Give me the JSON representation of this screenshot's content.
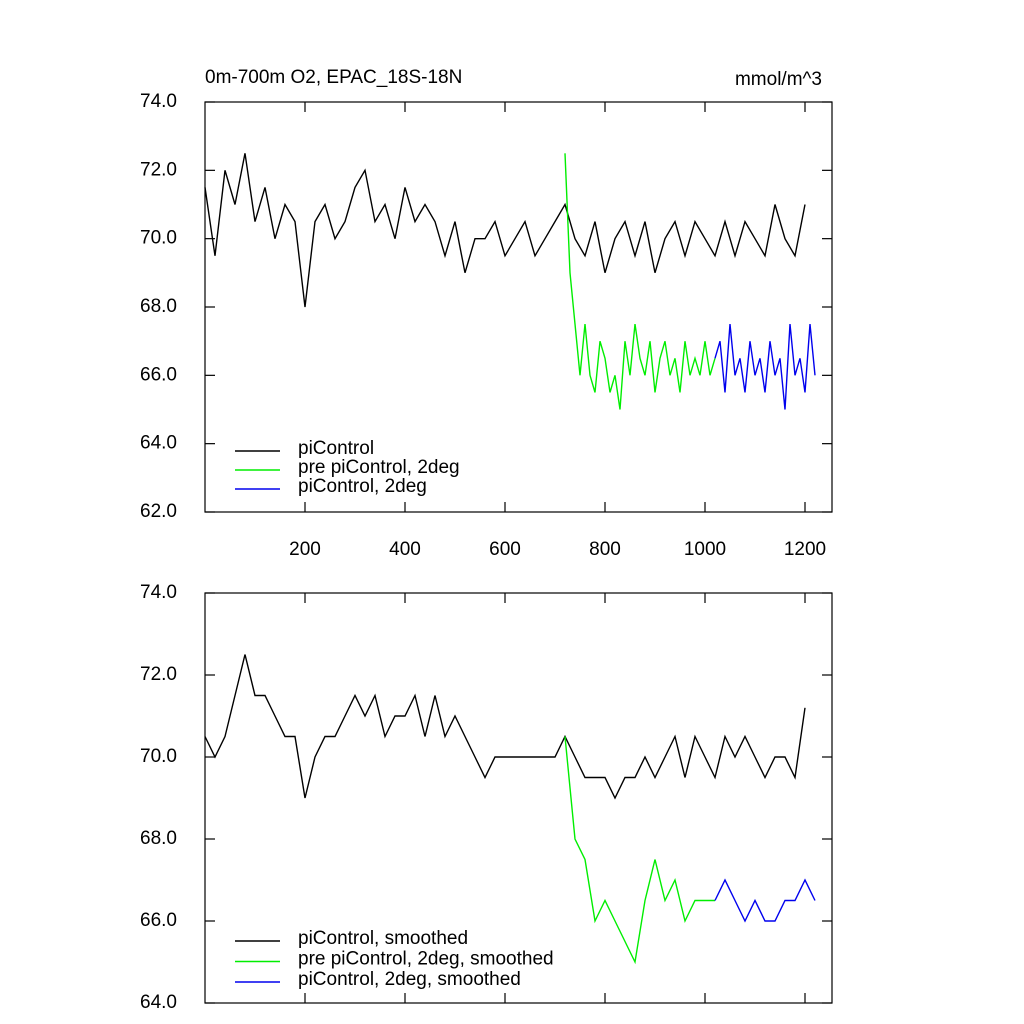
{
  "chart_data": [
    {
      "type": "line",
      "title": "0m-700m O2, EPAC_18S-18N",
      "units": "mmol/m^3",
      "xlim": [
        0,
        1254
      ],
      "xticks": [
        200,
        400,
        600,
        800,
        1000,
        1200
      ],
      "xtick_labels": true,
      "ylim": [
        62,
        74
      ],
      "yticks": [
        {
          "value": 62,
          "label": "62.0"
        },
        {
          "value": 64,
          "label": "64.0"
        },
        {
          "value": 66,
          "label": "66.0"
        },
        {
          "value": 68,
          "label": "68.0"
        },
        {
          "value": 70,
          "label": "70.0"
        },
        {
          "value": 72,
          "label": "72.0"
        },
        {
          "value": 74,
          "label": "74.0"
        }
      ],
      "legend": "lower left",
      "series": [
        {
          "name": "piControl",
          "color": "#000000",
          "x": [
            0,
            20,
            40,
            60,
            80,
            100,
            120,
            140,
            160,
            180,
            200,
            220,
            240,
            260,
            280,
            300,
            320,
            340,
            360,
            380,
            400,
            420,
            440,
            460,
            480,
            500,
            520,
            540,
            560,
            580,
            600,
            620,
            640,
            660,
            680,
            700,
            720,
            740,
            760,
            780,
            800,
            820,
            840,
            860,
            880,
            900,
            920,
            940,
            960,
            980,
            1000,
            1020,
            1040,
            1060,
            1080,
            1100,
            1120,
            1140,
            1160,
            1180,
            1200
          ],
          "values": [
            71.5,
            69.5,
            72,
            71,
            72.5,
            70.5,
            71.5,
            70,
            71,
            70.5,
            68,
            70.5,
            71,
            70,
            70.5,
            71.5,
            72,
            70.5,
            71,
            70,
            71.5,
            70.5,
            71,
            70.5,
            69.5,
            70.5,
            69,
            70,
            70,
            70.5,
            69.5,
            70,
            70.5,
            69.5,
            70,
            70.5,
            71,
            70,
            69.5,
            70.5,
            69,
            70,
            70.5,
            69.5,
            70.5,
            69,
            70,
            70.5,
            69.5,
            70.5,
            70,
            69.5,
            70.5,
            69.5,
            70.5,
            70,
            69.5,
            71,
            70,
            69.5,
            71
          ]
        },
        {
          "name": "pre piControl, 2deg",
          "color": "#00ee00",
          "x": [
            720,
            730,
            740,
            750,
            760,
            770,
            780,
            790,
            800,
            810,
            820,
            830,
            840,
            850,
            860,
            870,
            880,
            890,
            900,
            910,
            920,
            930,
            940,
            950,
            960,
            970,
            980,
            990,
            1000,
            1010,
            1020
          ],
          "values": [
            72.5,
            69,
            67.5,
            66,
            67.5,
            66,
            65.5,
            67,
            66.5,
            65.5,
            66,
            65,
            67,
            66,
            67.5,
            66.5,
            66,
            67,
            65.5,
            66.5,
            67,
            66,
            66.5,
            65.5,
            67,
            66,
            66.5,
            66,
            67,
            66,
            66.5
          ]
        },
        {
          "name": "piControl, 2deg",
          "color": "#0000ee",
          "x": [
            1020,
            1030,
            1040,
            1050,
            1060,
            1070,
            1080,
            1090,
            1100,
            1110,
            1120,
            1130,
            1140,
            1150,
            1160,
            1170,
            1180,
            1190,
            1200,
            1210,
            1220
          ],
          "values": [
            66.5,
            67,
            65.5,
            67.5,
            66,
            66.5,
            65.5,
            67,
            66,
            66.5,
            65.5,
            67,
            66,
            66.5,
            65,
            67.5,
            66,
            66.5,
            65.5,
            67.5,
            66
          ]
        }
      ]
    },
    {
      "type": "line",
      "xlim": [
        0,
        1254
      ],
      "xticks": [
        200,
        400,
        600,
        800,
        1000,
        1200
      ],
      "xtick_labels": false,
      "ylim": [
        64,
        74
      ],
      "yticks": [
        {
          "value": 64,
          "label": "64.0"
        },
        {
          "value": 66,
          "label": "66.0"
        },
        {
          "value": 68,
          "label": "68.0"
        },
        {
          "value": 70,
          "label": "70.0"
        },
        {
          "value": 72,
          "label": "72.0"
        },
        {
          "value": 74,
          "label": "74.0"
        }
      ],
      "legend": "lower left",
      "series": [
        {
          "name": "piControl, smoothed",
          "color": "#000000",
          "x": [
            0,
            20,
            40,
            60,
            80,
            100,
            120,
            140,
            160,
            180,
            200,
            220,
            240,
            260,
            280,
            300,
            320,
            340,
            360,
            380,
            400,
            420,
            440,
            460,
            480,
            500,
            520,
            540,
            560,
            580,
            600,
            620,
            640,
            660,
            680,
            700,
            720,
            740,
            760,
            780,
            800,
            820,
            840,
            860,
            880,
            900,
            920,
            940,
            960,
            980,
            1000,
            1020,
            1040,
            1060,
            1080,
            1100,
            1120,
            1140,
            1160,
            1180,
            1200
          ],
          "values": [
            70.5,
            70,
            70.5,
            71.5,
            72.5,
            71.5,
            71.5,
            71,
            70.5,
            70.5,
            69,
            70,
            70.5,
            70.5,
            71,
            71.5,
            71,
            71.5,
            70.5,
            71,
            71,
            71.5,
            70.5,
            71.5,
            70.5,
            71,
            70.5,
            70,
            69.5,
            70,
            70,
            70,
            70,
            70,
            70,
            70,
            70.5,
            70,
            69.5,
            69.5,
            69.5,
            69,
            69.5,
            69.5,
            70,
            69.5,
            70,
            70.5,
            69.5,
            70.5,
            70,
            69.5,
            70.5,
            70,
            70.5,
            70,
            69.5,
            70,
            70,
            69.5,
            71.2
          ]
        },
        {
          "name": "pre piControl, 2deg, smoothed",
          "color": "#00ee00",
          "x": [
            720,
            740,
            760,
            780,
            800,
            820,
            840,
            860,
            880,
            900,
            920,
            940,
            960,
            980,
            1000,
            1020
          ],
          "values": [
            70.5,
            68,
            67.5,
            66,
            66.5,
            66,
            65.5,
            65,
            66.5,
            67.5,
            66.5,
            67,
            66,
            66.5,
            66.5,
            66.5
          ]
        },
        {
          "name": "piControl, 2deg, smoothed",
          "color": "#0000ee",
          "x": [
            1020,
            1040,
            1060,
            1080,
            1100,
            1120,
            1140,
            1160,
            1180,
            1200,
            1220
          ],
          "values": [
            66.5,
            67,
            66.5,
            66,
            66.5,
            66,
            66,
            66.5,
            66.5,
            67,
            66.5
          ]
        }
      ]
    }
  ]
}
